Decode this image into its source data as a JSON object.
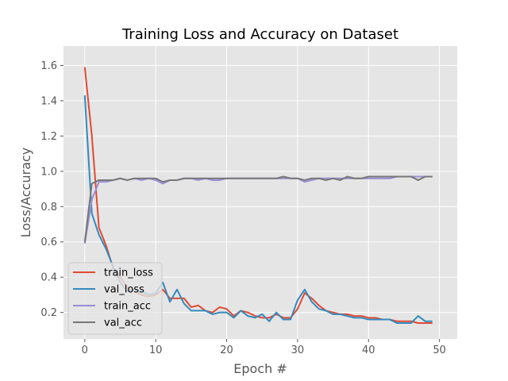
{
  "chart_data": {
    "type": "line",
    "title": "Training Loss and Accuracy on Dataset",
    "xlabel": "Epoch #",
    "ylabel": "Loss/Accuracy",
    "xlim": [
      -3,
      52.5
    ],
    "ylim": [
      0.05,
      1.71
    ],
    "xticks": [
      0,
      10,
      20,
      30,
      40,
      50
    ],
    "yticks": [
      0.2,
      0.4,
      0.6,
      0.8,
      1.0,
      1.2,
      1.4,
      1.6
    ],
    "grid": true,
    "legend_position": "lower-left",
    "x": [
      0,
      1,
      2,
      3,
      4,
      5,
      6,
      7,
      8,
      9,
      10,
      11,
      12,
      13,
      14,
      15,
      16,
      17,
      18,
      19,
      20,
      21,
      22,
      23,
      24,
      25,
      26,
      27,
      28,
      29,
      30,
      31,
      32,
      33,
      34,
      35,
      36,
      37,
      38,
      39,
      40,
      41,
      42,
      43,
      44,
      45,
      46,
      47,
      48,
      49
    ],
    "series": [
      {
        "name": "train_loss",
        "color": "#E24A33",
        "values": [
          1.59,
          1.2,
          0.68,
          0.58,
          0.45,
          0.4,
          0.34,
          0.32,
          0.3,
          0.29,
          0.3,
          0.33,
          0.28,
          0.28,
          0.28,
          0.23,
          0.24,
          0.21,
          0.2,
          0.23,
          0.22,
          0.18,
          0.21,
          0.2,
          0.18,
          0.17,
          0.17,
          0.19,
          0.17,
          0.17,
          0.22,
          0.31,
          0.28,
          0.24,
          0.21,
          0.2,
          0.19,
          0.19,
          0.18,
          0.18,
          0.17,
          0.17,
          0.16,
          0.16,
          0.15,
          0.15,
          0.15,
          0.14,
          0.14,
          0.14
        ]
      },
      {
        "name": "val_loss",
        "color": "#348ABD",
        "values": [
          1.43,
          0.76,
          0.64,
          0.56,
          0.46,
          0.37,
          0.32,
          0.33,
          0.32,
          0.3,
          0.31,
          0.37,
          0.26,
          0.33,
          0.25,
          0.21,
          0.21,
          0.21,
          0.19,
          0.2,
          0.2,
          0.17,
          0.21,
          0.18,
          0.17,
          0.19,
          0.15,
          0.2,
          0.16,
          0.16,
          0.27,
          0.33,
          0.26,
          0.22,
          0.21,
          0.19,
          0.19,
          0.18,
          0.17,
          0.17,
          0.16,
          0.16,
          0.16,
          0.16,
          0.14,
          0.14,
          0.14,
          0.18,
          0.15,
          0.15
        ]
      },
      {
        "name": "train_acc",
        "color": "#988ED5",
        "values": [
          0.59,
          0.84,
          0.94,
          0.94,
          0.95,
          0.96,
          0.95,
          0.96,
          0.95,
          0.96,
          0.95,
          0.93,
          0.95,
          0.95,
          0.96,
          0.96,
          0.95,
          0.96,
          0.95,
          0.95,
          0.96,
          0.96,
          0.96,
          0.96,
          0.96,
          0.96,
          0.96,
          0.96,
          0.96,
          0.96,
          0.96,
          0.94,
          0.95,
          0.96,
          0.96,
          0.96,
          0.96,
          0.96,
          0.96,
          0.96,
          0.96,
          0.96,
          0.96,
          0.96,
          0.97,
          0.97,
          0.97,
          0.97,
          0.97,
          0.97
        ]
      },
      {
        "name": "val_acc",
        "color": "#777777",
        "values": [
          0.6,
          0.93,
          0.95,
          0.95,
          0.95,
          0.96,
          0.95,
          0.96,
          0.96,
          0.96,
          0.96,
          0.94,
          0.95,
          0.95,
          0.96,
          0.96,
          0.96,
          0.96,
          0.96,
          0.96,
          0.96,
          0.96,
          0.96,
          0.96,
          0.96,
          0.96,
          0.96,
          0.96,
          0.97,
          0.96,
          0.96,
          0.95,
          0.96,
          0.96,
          0.95,
          0.96,
          0.95,
          0.97,
          0.96,
          0.96,
          0.97,
          0.97,
          0.97,
          0.97,
          0.97,
          0.97,
          0.97,
          0.95,
          0.97,
          0.97
        ]
      }
    ]
  }
}
